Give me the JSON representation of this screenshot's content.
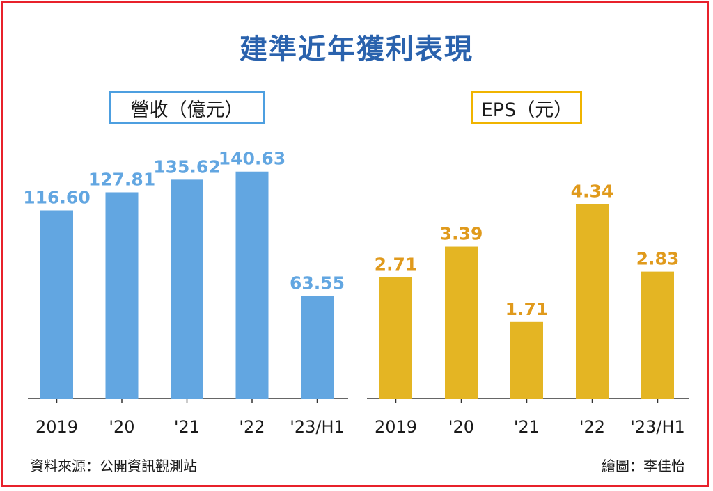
{
  "title": "建準近年獲利表現",
  "footer": {
    "source": "資料來源：公開資訊觀測站",
    "credit": "繪圖：李佳怡"
  },
  "colors": {
    "title": "#2a62ad",
    "revenue_bar": "#62a6e1",
    "revenue_label": "#62a6e1",
    "revenue_border": "#4d9fe0",
    "eps_bar": "#e4b523",
    "eps_label": "#e09a1c",
    "eps_border": "#f0b400",
    "frame": "#e8212b"
  },
  "chart_data": [
    {
      "type": "bar",
      "title": "營收（億元）",
      "categories": [
        "2019",
        "'20",
        "'21",
        "'22",
        "'23/H1"
      ],
      "values": [
        116.6,
        127.81,
        135.62,
        140.63,
        63.55
      ],
      "data_labels": [
        "116.60",
        "127.81",
        "135.62",
        "140.63",
        "63.55"
      ],
      "ylim": [
        0,
        150
      ],
      "grid": false,
      "legend": "none"
    },
    {
      "type": "bar",
      "title": "EPS（元）",
      "categories": [
        "2019",
        "'20",
        "'21",
        "'22",
        "'23/H1"
      ],
      "values": [
        2.71,
        3.39,
        1.71,
        4.34,
        2.83
      ],
      "data_labels": [
        "2.71",
        "3.39",
        "1.71",
        "4.34",
        "2.83"
      ],
      "ylim": [
        0,
        5.4
      ],
      "grid": false,
      "legend": "none"
    }
  ]
}
